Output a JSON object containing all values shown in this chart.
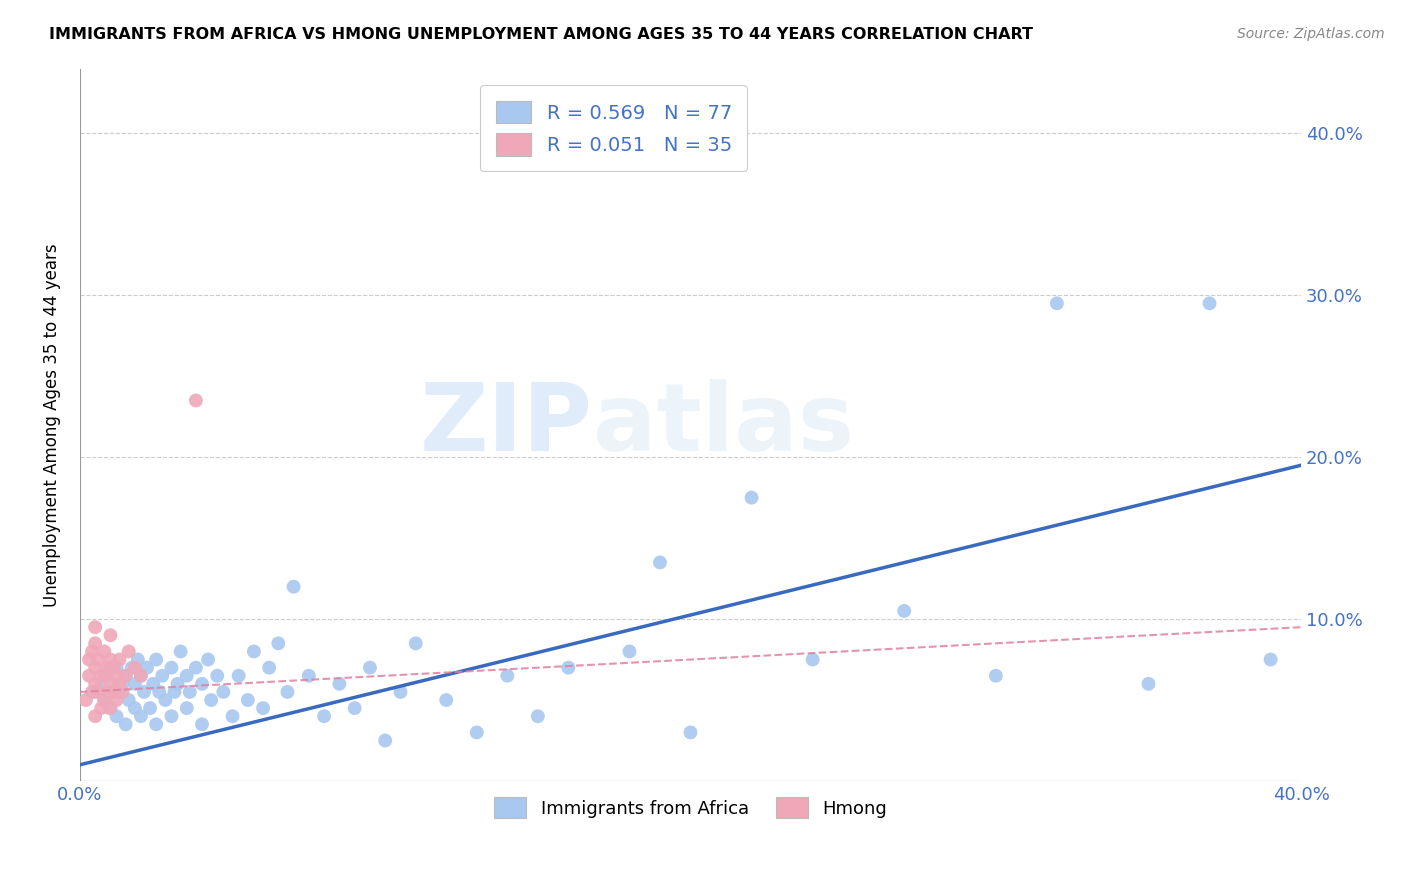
{
  "title": "IMMIGRANTS FROM AFRICA VS HMONG UNEMPLOYMENT AMONG AGES 35 TO 44 YEARS CORRELATION CHART",
  "source": "Source: ZipAtlas.com",
  "ylabel": "Unemployment Among Ages 35 to 44 years",
  "xlim": [
    0.0,
    0.4
  ],
  "ylim": [
    0.0,
    0.44
  ],
  "africa_color": "#a8c8f0",
  "hmong_color": "#f0a8b8",
  "africa_line_color": "#3a6abf",
  "hmong_line_color": "#e080a0",
  "watermark_zip": "ZIP",
  "watermark_atlas": "atlas",
  "legend_africa_label": "R = 0.569   N = 77",
  "legend_hmong_label": "R = 0.051   N = 35",
  "legend_bottom_africa": "Immigrants from Africa",
  "legend_bottom_hmong": "Hmong",
  "africa_scatter_x": [
    0.005,
    0.007,
    0.008,
    0.009,
    0.01,
    0.01,
    0.011,
    0.012,
    0.012,
    0.013,
    0.014,
    0.015,
    0.015,
    0.016,
    0.017,
    0.018,
    0.018,
    0.019,
    0.02,
    0.02,
    0.021,
    0.022,
    0.023,
    0.024,
    0.025,
    0.025,
    0.026,
    0.027,
    0.028,
    0.03,
    0.03,
    0.031,
    0.032,
    0.033,
    0.035,
    0.035,
    0.036,
    0.038,
    0.04,
    0.04,
    0.042,
    0.043,
    0.045,
    0.047,
    0.05,
    0.052,
    0.055,
    0.057,
    0.06,
    0.062,
    0.065,
    0.068,
    0.07,
    0.075,
    0.08,
    0.085,
    0.09,
    0.095,
    0.1,
    0.105,
    0.11,
    0.12,
    0.13,
    0.14,
    0.15,
    0.16,
    0.18,
    0.19,
    0.2,
    0.22,
    0.24,
    0.27,
    0.3,
    0.32,
    0.35,
    0.37,
    0.39
  ],
  "africa_scatter_y": [
    0.055,
    0.06,
    0.05,
    0.065,
    0.045,
    0.07,
    0.055,
    0.04,
    0.07,
    0.055,
    0.06,
    0.035,
    0.065,
    0.05,
    0.07,
    0.045,
    0.06,
    0.075,
    0.04,
    0.065,
    0.055,
    0.07,
    0.045,
    0.06,
    0.035,
    0.075,
    0.055,
    0.065,
    0.05,
    0.04,
    0.07,
    0.055,
    0.06,
    0.08,
    0.045,
    0.065,
    0.055,
    0.07,
    0.035,
    0.06,
    0.075,
    0.05,
    0.065,
    0.055,
    0.04,
    0.065,
    0.05,
    0.08,
    0.045,
    0.07,
    0.085,
    0.055,
    0.12,
    0.065,
    0.04,
    0.06,
    0.045,
    0.07,
    0.025,
    0.055,
    0.085,
    0.05,
    0.03,
    0.065,
    0.04,
    0.07,
    0.08,
    0.135,
    0.03,
    0.175,
    0.075,
    0.105,
    0.065,
    0.295,
    0.06,
    0.295,
    0.075
  ],
  "hmong_scatter_x": [
    0.002,
    0.003,
    0.003,
    0.004,
    0.004,
    0.005,
    0.005,
    0.005,
    0.005,
    0.005,
    0.006,
    0.006,
    0.007,
    0.007,
    0.008,
    0.008,
    0.008,
    0.009,
    0.009,
    0.01,
    0.01,
    0.01,
    0.01,
    0.011,
    0.011,
    0.012,
    0.012,
    0.013,
    0.013,
    0.014,
    0.015,
    0.016,
    0.018,
    0.02,
    0.038
  ],
  "hmong_scatter_y": [
    0.05,
    0.065,
    0.075,
    0.055,
    0.08,
    0.04,
    0.06,
    0.07,
    0.085,
    0.095,
    0.055,
    0.075,
    0.045,
    0.065,
    0.05,
    0.065,
    0.08,
    0.055,
    0.07,
    0.045,
    0.06,
    0.075,
    0.09,
    0.055,
    0.07,
    0.05,
    0.065,
    0.06,
    0.075,
    0.055,
    0.065,
    0.08,
    0.07,
    0.065,
    0.235
  ],
  "africa_line_x": [
    0.0,
    0.4
  ],
  "africa_line_y": [
    0.01,
    0.195
  ],
  "hmong_line_x": [
    0.0,
    0.4
  ],
  "hmong_line_y": [
    0.055,
    0.095
  ]
}
